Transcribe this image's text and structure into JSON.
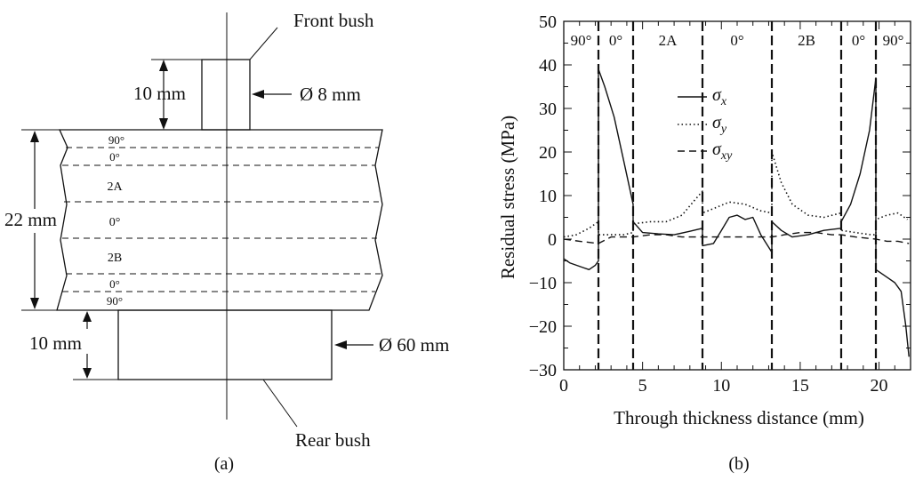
{
  "panel_a": {
    "caption": "(a)",
    "front_bush_label": "Front bush",
    "rear_bush_label": "Rear bush",
    "dim_10mm_top": "10 mm",
    "dim_8mm": "Ø 8 mm",
    "dim_22mm": "22 mm",
    "dim_10mm_bottom": "10 mm",
    "dim_60mm": "Ø 60 mm",
    "ply_labels": [
      "90°",
      "0°",
      "2A",
      "0°",
      "2B",
      "0°",
      "90°"
    ]
  },
  "panel_b": {
    "caption": "(b)",
    "region_labels": [
      "90°",
      "0°",
      "2A",
      "0°",
      "2B",
      "0°",
      "90°"
    ]
  },
  "chart_data": {
    "type": "line",
    "xlabel": "Through thickness distance (mm)",
    "ylabel": "Residual stress (MPa)",
    "xlim": [
      0,
      22
    ],
    "ylim": [
      -30,
      50
    ],
    "xticks": [
      "0",
      "5",
      "10",
      "15",
      "20"
    ],
    "yticks": [
      "−30",
      "−20",
      "−10",
      "0",
      "10",
      "20",
      "30",
      "40",
      "50"
    ],
    "grid": false,
    "legend_position": "upper-middle",
    "boundaries_x": [
      2.2,
      4.4,
      8.8,
      13.2,
      17.6,
      19.8
    ],
    "series": [
      {
        "name": "σx",
        "style": "solid",
        "x": [
          0,
          0.4,
          0.8,
          1.2,
          1.6,
          2.0,
          2.2,
          2.2,
          2.6,
          3.2,
          3.8,
          4.4,
          4.4,
          5.0,
          6.0,
          7.0,
          8.0,
          8.8,
          8.8,
          9.5,
          10.0,
          10.5,
          11.0,
          11.5,
          12.0,
          12.5,
          13.2,
          13.2,
          13.8,
          14.5,
          15.5,
          16.5,
          17.6,
          17.6,
          18.2,
          18.8,
          19.4,
          19.8,
          19.8,
          20.2,
          20.6,
          21.0,
          21.4,
          21.7,
          21.9
        ],
        "y": [
          -4.5,
          -5.5,
          -6,
          -6.5,
          -7,
          -6,
          -5,
          39,
          35,
          28,
          18,
          8,
          4,
          1.5,
          1.2,
          1.0,
          1.8,
          2.5,
          -1.5,
          -1,
          2,
          5,
          5.5,
          4.5,
          5,
          1,
          -3,
          4,
          2,
          0.5,
          1,
          2,
          2.5,
          4,
          8,
          15,
          25,
          37,
          -7,
          -8,
          -9,
          -10,
          -12,
          -20,
          -27
        ]
      },
      {
        "name": "σy",
        "style": "dotted",
        "x": [
          0,
          0.8,
          1.6,
          2.2,
          2.2,
          3.0,
          3.8,
          4.4,
          4.4,
          5.5,
          6.5,
          7.5,
          8.2,
          8.8,
          8.8,
          9.5,
          10.5,
          11.5,
          12.5,
          13.2,
          13.2,
          13.8,
          14.5,
          15.5,
          16.5,
          17.6,
          17.6,
          18.5,
          19.5,
          19.8,
          19.8,
          20.5,
          21.2,
          21.8
        ],
        "y": [
          0.5,
          1,
          2.5,
          4,
          1,
          1,
          1,
          1.5,
          3.5,
          4,
          4,
          5.5,
          8.5,
          11,
          6,
          7,
          8.5,
          8,
          6.5,
          6,
          20,
          13,
          8,
          5.5,
          5,
          6,
          2,
          1.5,
          1,
          1,
          4.5,
          5.5,
          6,
          4.5
        ]
      },
      {
        "name": "σxy",
        "style": "dashed",
        "x": [
          0,
          1,
          2.2,
          3,
          4.4,
          5.5,
          6.5,
          7.5,
          8.8,
          9.5,
          10.5,
          11.5,
          12.5,
          13.2,
          14,
          15,
          16,
          17,
          17.6,
          18.5,
          19.8,
          20.5,
          21.2,
          21.9
        ],
        "y": [
          0,
          -0.5,
          -1,
          0.5,
          0.5,
          1,
          1,
          0.5,
          0.5,
          0.5,
          0.5,
          0.5,
          0.5,
          0.5,
          1,
          1.5,
          1.5,
          1,
          1,
          0.5,
          0,
          -0.5,
          -0.5,
          -1
        ]
      }
    ]
  }
}
